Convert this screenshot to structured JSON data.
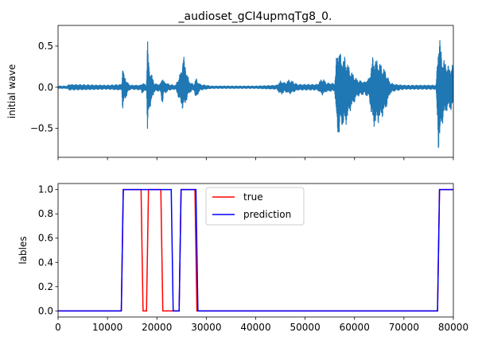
{
  "chart_data": [
    {
      "type": "line",
      "title": "_audioset_gCI4upmqTg8_0.",
      "xlabel": "",
      "ylabel": "initial wave",
      "xlim": [
        0,
        80000
      ],
      "ylim": [
        -0.85,
        0.75
      ],
      "yticks": [
        0.5,
        0.0,
        -0.5
      ],
      "ytick_labels": [
        "0.5",
        "0.0",
        "−0.5"
      ],
      "xticks": [
        0,
        10000,
        20000,
        30000,
        40000,
        50000,
        60000,
        70000,
        80000
      ],
      "xtick_labels_shown": false,
      "series": [
        {
          "color": "#1f77b4",
          "envelope": {
            "x": [
              0,
              1900,
              2100,
              10000,
              12900,
              13100,
              13300,
              14200,
              14600,
              16800,
              17000,
              17900,
              18100,
              18400,
              19500,
              20600,
              20900,
              21100,
              21300,
              22500,
              23800,
              25000,
              25300,
              25600,
              26500,
              27400,
              27600,
              27900,
              28200,
              28800,
              31000,
              40000,
              44300,
              45000,
              46000,
              46800,
              48500,
              52500,
              53500,
              54300,
              56000,
              56400,
              56800,
              57400,
              58100,
              59100,
              60500,
              62000,
              63000,
              63700,
              65200,
              66200,
              66800,
              67200,
              68200,
              70000,
              73000,
              76500,
              76800,
              77000,
              77300,
              77600,
              78000,
              78600,
              79200,
              80000
            ],
            "max": [
              0.02,
              0.02,
              0.04,
              0.03,
              0.04,
              0.34,
              0.16,
              0.05,
              0.03,
              0.03,
              0.06,
              0.03,
              0.62,
              0.27,
              0.05,
              0.04,
              0.08,
              0.16,
              0.08,
              0.04,
              0.03,
              0.22,
              0.44,
              0.32,
              0.08,
              0.04,
              0.05,
              0.12,
              0.08,
              0.04,
              0.02,
              0.02,
              0.03,
              0.08,
              0.06,
              0.1,
              0.04,
              0.04,
              0.12,
              0.06,
              0.05,
              0.42,
              0.5,
              0.36,
              0.38,
              0.22,
              0.1,
              0.07,
              0.12,
              0.38,
              0.3,
              0.21,
              0.12,
              0.06,
              0.04,
              0.03,
              0.03,
              0.03,
              0.35,
              0.68,
              0.6,
              0.42,
              0.35,
              0.3,
              0.25,
              0.28
            ],
            "min": [
              -0.02,
              -0.02,
              -0.04,
              -0.03,
              -0.04,
              -0.32,
              -0.2,
              -0.06,
              -0.03,
              -0.04,
              -0.08,
              -0.04,
              -0.65,
              -0.3,
              -0.06,
              -0.05,
              -0.12,
              -0.26,
              -0.1,
              -0.04,
              -0.03,
              -0.24,
              -0.28,
              -0.24,
              -0.08,
              -0.04,
              -0.05,
              -0.18,
              -0.1,
              -0.04,
              -0.02,
              -0.02,
              -0.03,
              -0.1,
              -0.06,
              -0.09,
              -0.04,
              -0.04,
              -0.1,
              -0.06,
              -0.05,
              -0.52,
              -0.62,
              -0.48,
              -0.5,
              -0.3,
              -0.12,
              -0.09,
              -0.14,
              -0.5,
              -0.42,
              -0.3,
              -0.18,
              -0.08,
              -0.05,
              -0.03,
              -0.03,
              -0.03,
              -0.5,
              -0.79,
              -0.66,
              -0.5,
              -0.4,
              -0.3,
              -0.28,
              -0.3
            ]
          }
        }
      ]
    },
    {
      "type": "line",
      "title": "",
      "xlabel": "",
      "ylabel": "lables",
      "xlim": [
        0,
        80000
      ],
      "ylim": [
        -0.05,
        1.05
      ],
      "yticks": [
        0.0,
        0.2,
        0.4,
        0.6,
        0.8,
        1.0
      ],
      "ytick_labels": [
        "0.0",
        "0.2",
        "0.4",
        "0.6",
        "0.8",
        "1.0"
      ],
      "xticks": [
        0,
        10000,
        20000,
        30000,
        40000,
        50000,
        60000,
        70000,
        80000
      ],
      "xtick_labels": [
        "0",
        "10000",
        "20000",
        "30000",
        "40000",
        "50000",
        "60000",
        "70000",
        "80000"
      ],
      "legend_position": "top-center",
      "series": [
        {
          "name": "true",
          "color": "#ff0000",
          "x": [
            0,
            12800,
            13200,
            16800,
            17200,
            17900,
            18300,
            20800,
            21200,
            24500,
            24900,
            27700,
            28100,
            76800,
            77200,
            80000
          ],
          "y": [
            0,
            0,
            1,
            1,
            0,
            0,
            1,
            1,
            0,
            0,
            1,
            1,
            0,
            0,
            1,
            1
          ]
        },
        {
          "name": "prediction",
          "color": "#0000ff",
          "x": [
            0,
            12800,
            13200,
            22900,
            23300,
            24500,
            24900,
            27900,
            28300,
            76800,
            77200,
            80000
          ],
          "y": [
            0,
            0,
            1,
            1,
            0,
            0,
            1,
            1,
            0,
            0,
            1,
            1
          ]
        }
      ]
    }
  ]
}
